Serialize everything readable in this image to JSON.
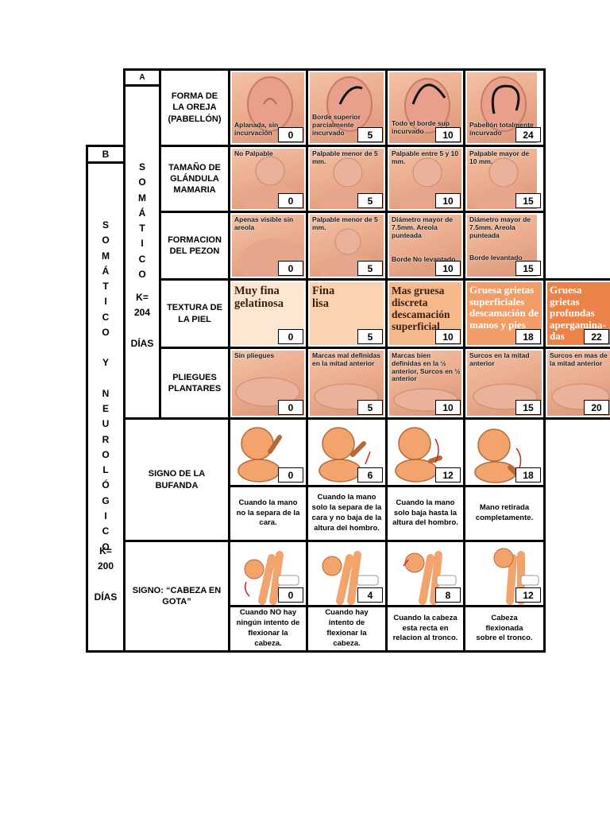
{
  "section_a": {
    "letter": "A",
    "vertical": "SOMÁTICO",
    "k_label": "K=",
    "k_value": "204",
    "days": "DÍAS"
  },
  "section_b": {
    "letter": "B",
    "vertical_1": "SOMÁTICO",
    "conj": "Y",
    "vertical_2": "NEUROLÓGICO",
    "k_label": "K=",
    "k_value": "200",
    "days": "DÍAS"
  },
  "rows": [
    {
      "param": "FORMA DE LA OREJA (PABELLÓN)",
      "cells": [
        {
          "text": "Aplanada, sin incurvación",
          "score": "0"
        },
        {
          "text": "Borde superior parcialmente incurvado",
          "score": "5"
        },
        {
          "text": "Todo el borde sup incurvado",
          "score": "10"
        },
        {
          "text": "Pabellón totalmente incurvado",
          "score": "24"
        }
      ]
    },
    {
      "param": "TAMAÑO DE GLÁNDULA MAMARIA",
      "cells": [
        {
          "text": "No Palpable",
          "score": "0"
        },
        {
          "text": "Palpable menor de 5 mm.",
          "score": "5"
        },
        {
          "text": "Palpable entre 5 y 10 mm.",
          "score": "10"
        },
        {
          "text": "Palpable mayor de 10 mm.",
          "score": "15"
        }
      ]
    },
    {
      "param": "FORMACION DEL PEZON",
      "cells": [
        {
          "text": "Apenas visible sin areola",
          "score": "0"
        },
        {
          "text": "Palpable menor de 5 mm.",
          "score": "5"
        },
        {
          "text": "Diámetro mayor de 7.5mm. Areola punteada",
          "text2": "Borde No levantado",
          "score": "10"
        },
        {
          "text": "Diámetro mayor de 7.5mm. Areola punteada",
          "text2": "Borde levantado",
          "score": "15"
        }
      ]
    },
    {
      "param": "TEXTURA DE LA PIEL",
      "cells": [
        {
          "text": "Muy fina gelatinosa",
          "score": "0"
        },
        {
          "text": "Fina lisa",
          "score": "5"
        },
        {
          "text": "Mas gruesa discreta descamación superficial",
          "score": "10"
        },
        {
          "text": "Gruesa grietas superficiales descamación de manos y pies",
          "score": "18"
        },
        {
          "text": "Gruesa grietas profundas apergamina-das",
          "score": "22"
        }
      ]
    },
    {
      "param": "PLIEGUES PLANTARES",
      "cells": [
        {
          "text": "Sin pliegues",
          "score": "0"
        },
        {
          "text": "Marcas mal definidas en la mitad anterior",
          "score": "5"
        },
        {
          "text": "Marcas bien definidas en la ½ anterior, Surcos en ½ anterior",
          "score": "10"
        },
        {
          "text": "Surcos en la mitad anterior",
          "score": "15"
        },
        {
          "text": "Surcos en mas de la mitad anterior",
          "score": "20"
        }
      ]
    }
  ],
  "neuro": [
    {
      "param": "SIGNO DE LA BUFANDA",
      "cells": [
        {
          "score": "0",
          "caption": "Cuando la mano no la separa de la cara."
        },
        {
          "score": "6",
          "caption": "Cuando la mano solo la separa de la cara y no baja de la altura del hombro."
        },
        {
          "score": "12",
          "caption": "Cuando la mano solo baja hasta la altura del hombro."
        },
        {
          "score": "18",
          "caption": "Mano retirada completamente."
        }
      ]
    },
    {
      "param": "SIGNO: “CABEZA EN GOTA”",
      "cells": [
        {
          "score": "0",
          "caption": "Cuando NO hay ningún intento de flexionar la cabeza."
        },
        {
          "score": "4",
          "caption": "Cuando hay intento de flexionar la cabeza."
        },
        {
          "score": "8",
          "caption": "Cuando la cabeza esta recta en relacion al tronco."
        },
        {
          "score": "12",
          "caption": "Cabeza flexionada sobre el tronco."
        }
      ]
    }
  ]
}
